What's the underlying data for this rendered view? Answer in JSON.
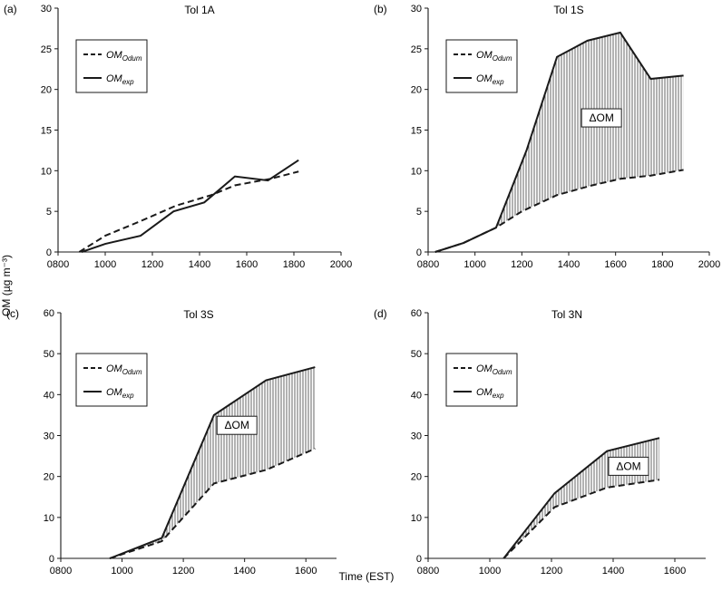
{
  "figure": {
    "y_axis_label": "OM (µg m⁻³)",
    "x_axis_label": "Time (EST)"
  },
  "legend": {
    "odum_main": "OM",
    "odum_sub": "Odum",
    "exp_main": "OM",
    "exp_sub": "exp",
    "delta_label": "ΔOM"
  },
  "colors": {
    "line": "#1a1a1a",
    "hatch": "#555555",
    "background": "#ffffff"
  },
  "chart_data": [
    {
      "panel": "(a)",
      "title": "Tol 1A",
      "type": "line",
      "xlim": [
        800,
        2000
      ],
      "ylim": [
        0,
        30
      ],
      "x_ticks": [
        "0800",
        "1000",
        "1200",
        "1400",
        "1600",
        "1800",
        "2000"
      ],
      "y_ticks": [
        "0",
        "5",
        "10",
        "15",
        "20",
        "25",
        "30"
      ],
      "shaded_difference": false,
      "series": [
        {
          "name": "OM_Odum",
          "style": "dashed",
          "x": [
            890,
            1000,
            1150,
            1300,
            1450,
            1550,
            1700,
            1820
          ],
          "y": [
            0,
            2,
            3.8,
            5.7,
            7,
            8.2,
            9.0,
            9.9
          ]
        },
        {
          "name": "OM_exp",
          "style": "solid",
          "x": [
            900,
            1000,
            1150,
            1290,
            1420,
            1550,
            1690,
            1820
          ],
          "y": [
            0,
            1,
            2,
            5,
            6.1,
            9.3,
            8.8,
            11.3
          ]
        }
      ]
    },
    {
      "panel": "(b)",
      "title": "Tol 1S",
      "type": "area",
      "xlim": [
        800,
        2000
      ],
      "ylim": [
        0,
        30
      ],
      "x_ticks": [
        "0800",
        "1000",
        "1200",
        "1400",
        "1600",
        "1800",
        "2000"
      ],
      "y_ticks": [
        "0",
        "5",
        "10",
        "15",
        "20",
        "25",
        "30"
      ],
      "shaded_difference": true,
      "delta_at": {
        "x": 1540,
        "y": 16.5
      },
      "series": [
        {
          "name": "OM_Odum",
          "style": "dashed",
          "x": [
            830,
            950,
            1090,
            1200,
            1350,
            1500,
            1620,
            1750,
            1890
          ],
          "y": [
            0,
            1.1,
            3.0,
            5.0,
            7.0,
            8.2,
            9.0,
            9.4,
            10.1
          ]
        },
        {
          "name": "OM_exp",
          "style": "solid",
          "x": [
            830,
            950,
            1090,
            1220,
            1350,
            1480,
            1620,
            1750,
            1890
          ],
          "y": [
            0,
            1.1,
            3.0,
            12.5,
            24,
            26,
            27,
            21.3,
            21.7
          ]
        }
      ]
    },
    {
      "panel": "(c)",
      "title": "Tol 3S",
      "type": "area",
      "xlim": [
        800,
        1700
      ],
      "ylim": [
        0,
        60
      ],
      "x_ticks": [
        "0800",
        "1000",
        "1200",
        "1400",
        "1600"
      ],
      "y_ticks": [
        "0",
        "10",
        "20",
        "30",
        "40",
        "50",
        "60"
      ],
      "shaded_difference": true,
      "delta_at": {
        "x": 1375,
        "y": 32.5
      },
      "series": [
        {
          "name": "OM_Odum",
          "style": "dashed",
          "x": [
            960,
            1130,
            1300,
            1470,
            1630
          ],
          "y": [
            0,
            4.2,
            18.3,
            21.6,
            26.8
          ]
        },
        {
          "name": "OM_exp",
          "style": "solid",
          "x": [
            960,
            1130,
            1300,
            1470,
            1630
          ],
          "y": [
            0,
            5.0,
            35,
            43.5,
            46.7
          ]
        }
      ]
    },
    {
      "panel": "(d)",
      "title": "Tol 3N",
      "type": "area",
      "xlim": [
        800,
        1700
      ],
      "ylim": [
        0,
        60
      ],
      "x_ticks": [
        "0800",
        "1000",
        "1200",
        "1400",
        "1600"
      ],
      "y_ticks": [
        "0",
        "10",
        "20",
        "30",
        "40",
        "50",
        "60"
      ],
      "shaded_difference": true,
      "delta_at": {
        "x": 1450,
        "y": 22.5
      },
      "series": [
        {
          "name": "OM_Odum",
          "style": "dashed",
          "x": [
            1045,
            1210,
            1380,
            1550
          ],
          "y": [
            0,
            12.5,
            17.3,
            19.2
          ]
        },
        {
          "name": "OM_exp",
          "style": "solid",
          "x": [
            1045,
            1210,
            1380,
            1550
          ],
          "y": [
            0,
            15.9,
            26.2,
            29.4
          ]
        }
      ]
    }
  ]
}
